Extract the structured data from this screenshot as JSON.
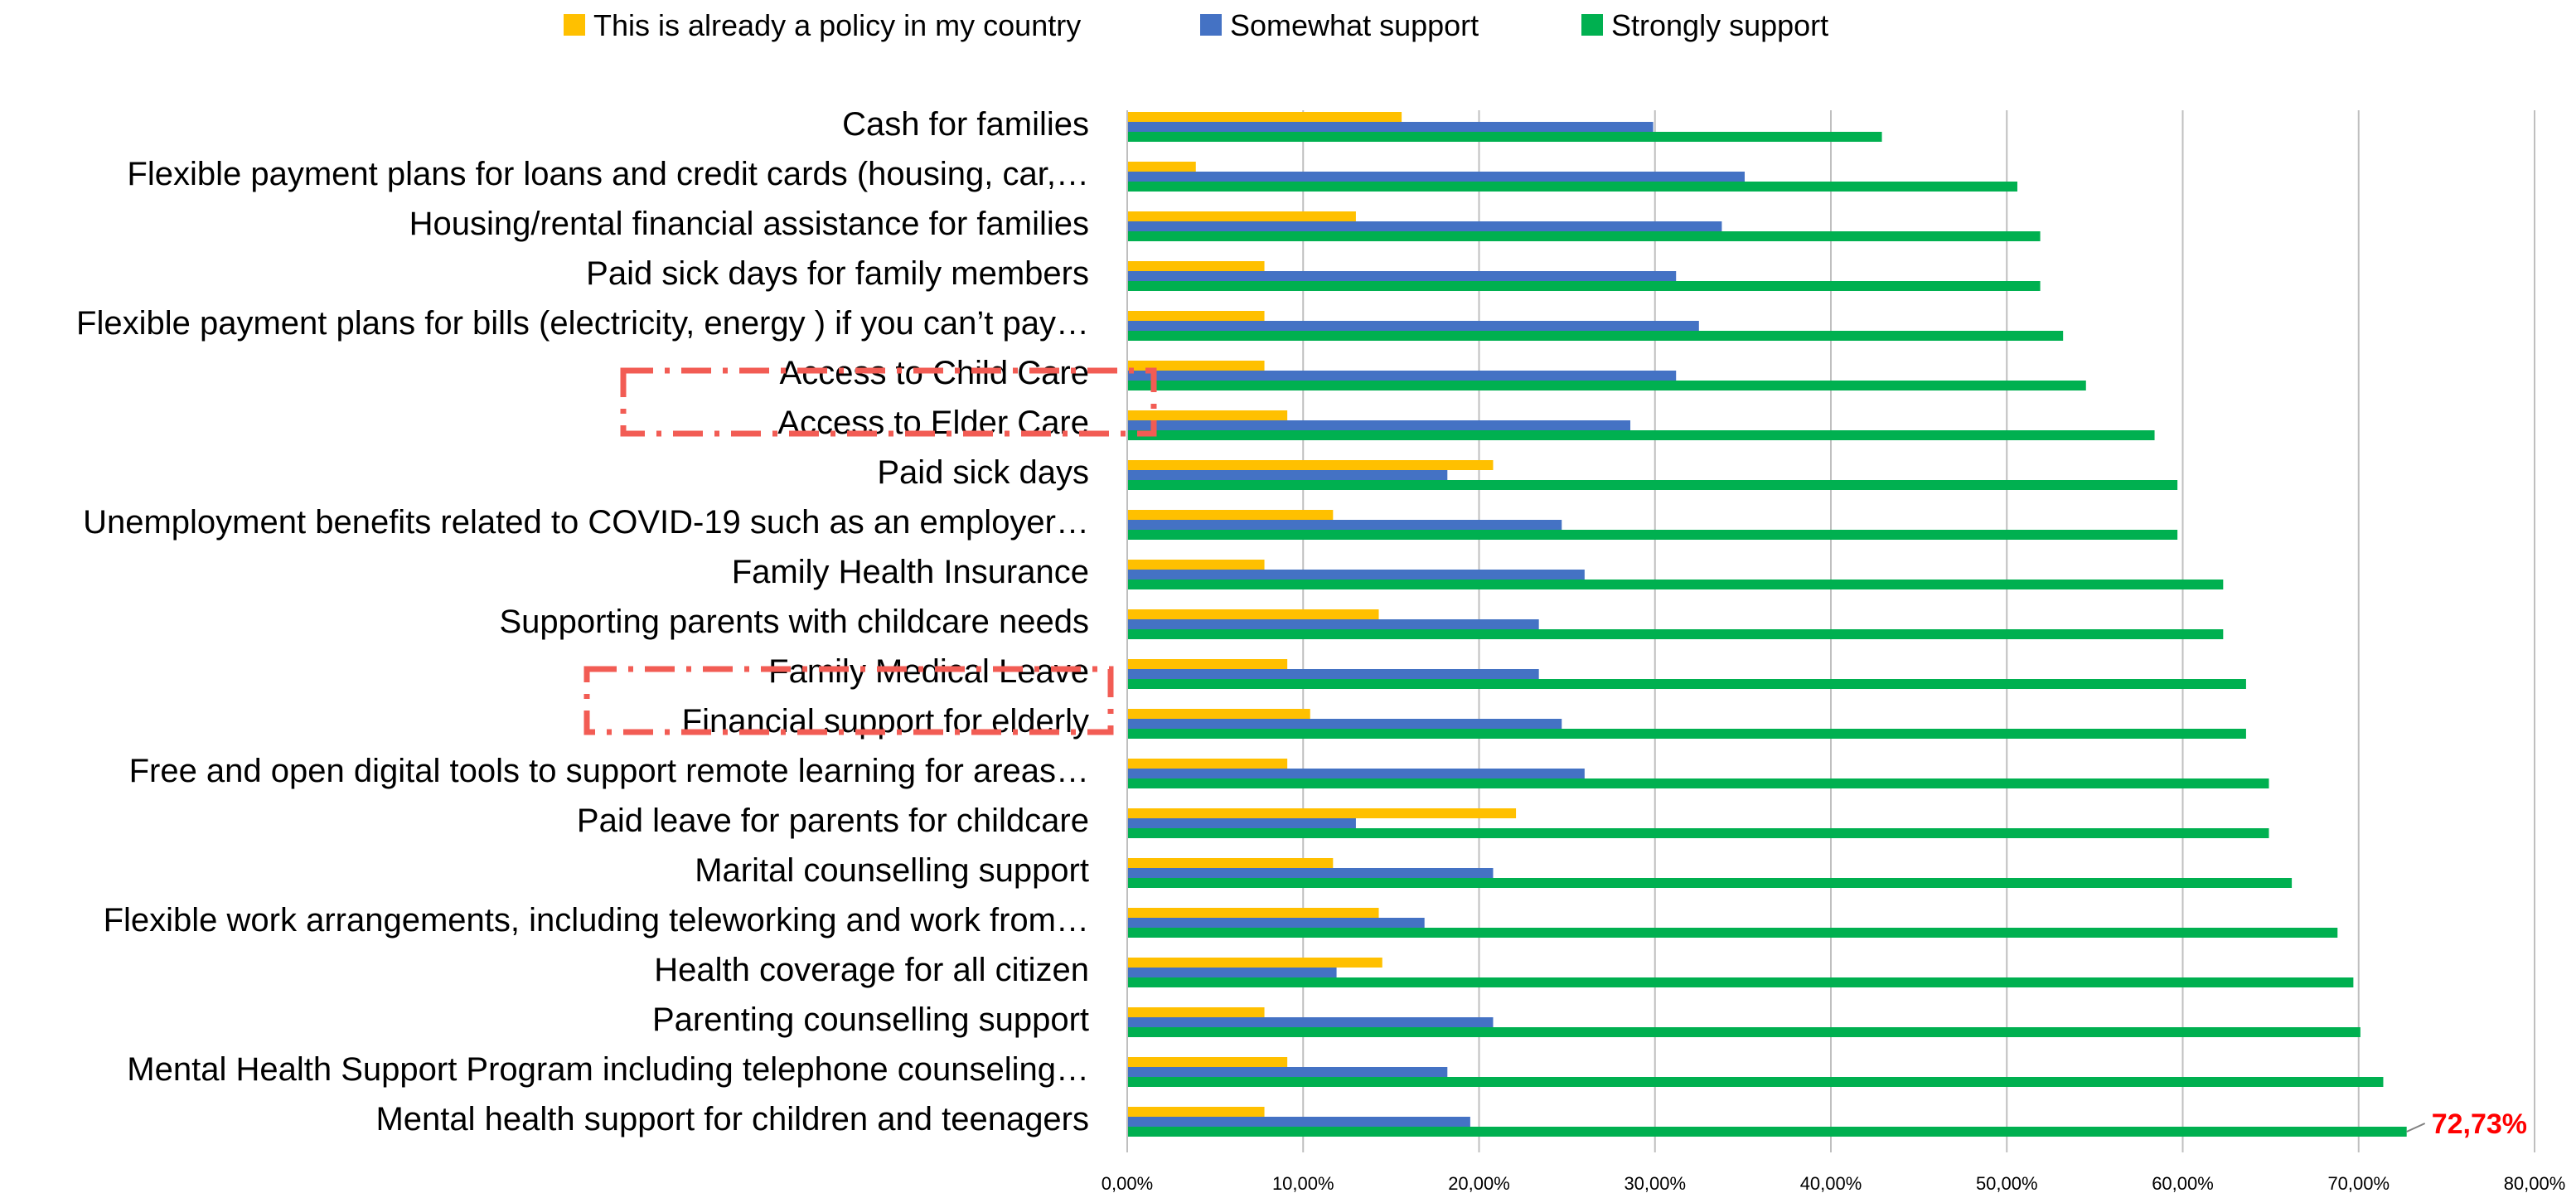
{
  "chart_data": {
    "type": "bar",
    "orientation": "horizontal",
    "categories": [
      "Cash for families",
      "Flexible payment plans for loans and credit cards (housing, car,…",
      "Housing/rental financial assistance for families",
      "Paid sick days for family members",
      "Flexible payment plans for bills (electricity, energy ) if you can’t pay…",
      "Access to Child Care",
      "Access to Elder Care",
      "Paid sick days",
      "Unemployment benefits related to COVID-19 such as an employer…",
      "Family Health Insurance",
      "Supporting parents with childcare needs",
      "Family Medical Leave",
      "Financial support for elderly",
      "Free and open digital tools to support remote learning for areas…",
      "Paid leave for parents for childcare",
      "Marital counselling support",
      "Flexible work arrangements, including teleworking and work from…",
      "Health coverage for all citizen",
      "Parenting counselling support",
      "Mental Health Support Program including telephone counseling…",
      "Mental health support for children and teenagers"
    ],
    "series": [
      {
        "name": "This is already a policy in my country",
        "color": "#FFC000",
        "values": [
          15.6,
          3.9,
          13.0,
          7.8,
          7.8,
          7.8,
          9.1,
          20.8,
          11.7,
          7.8,
          14.3,
          9.1,
          10.4,
          9.1,
          22.1,
          11.7,
          14.3,
          14.5,
          7.8,
          9.1,
          7.8
        ]
      },
      {
        "name": "Somewhat support",
        "color": "#4472C4",
        "values": [
          29.9,
          35.1,
          33.8,
          31.2,
          32.5,
          31.2,
          28.6,
          18.2,
          24.7,
          26.0,
          23.4,
          23.4,
          24.7,
          26.0,
          13.0,
          20.8,
          16.9,
          11.9,
          20.8,
          18.2,
          19.5
        ]
      },
      {
        "name": "Strongly support",
        "color": "#00B050",
        "values": [
          42.9,
          50.6,
          51.9,
          51.9,
          53.2,
          54.5,
          58.4,
          59.7,
          59.7,
          62.3,
          62.3,
          63.6,
          63.6,
          64.9,
          64.9,
          66.2,
          68.8,
          69.7,
          70.1,
          71.4,
          72.73
        ]
      }
    ],
    "xlim": [
      0,
      80
    ],
    "xticks": [
      "0,00%",
      "10,00%",
      "20,00%",
      "30,00%",
      "40,00%",
      "50,00%",
      "60,00%",
      "70,00%",
      "80,00%"
    ],
    "grid": "vertical",
    "legend_position": "top-center",
    "annotation": {
      "text": "72,73%",
      "category": "Mental health support for children and teenagers",
      "series": "Strongly support",
      "color": "#FF0000"
    },
    "highlights": [
      "Access to Elder Care",
      "Financial support for elderly"
    ],
    "highlight_color": "#F25C54"
  }
}
